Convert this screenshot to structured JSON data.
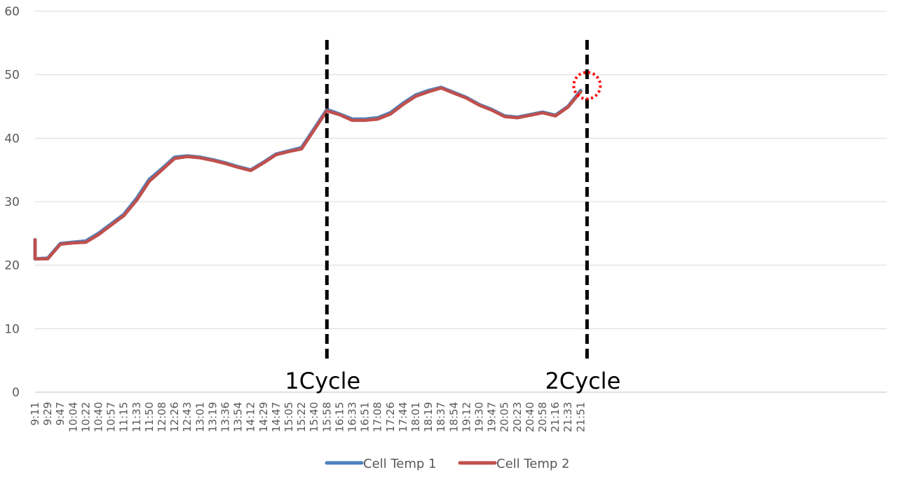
{
  "chart_data": {
    "type": "line",
    "title": "",
    "xlabel": "",
    "ylabel": "",
    "ylim": [
      0,
      60
    ],
    "y_ticks": [
      0,
      10,
      20,
      30,
      40,
      50,
      60
    ],
    "grid": true,
    "legend_position": "bottom",
    "categories": [
      "9:11",
      "9:29",
      "9:47",
      "10:04",
      "10:22",
      "10:40",
      "10:57",
      "11:15",
      "11:33",
      "11:50",
      "12:08",
      "12:26",
      "12:43",
      "13:01",
      "13:19",
      "13:36",
      "13:54",
      "14:12",
      "14:29",
      "14:47",
      "15:05",
      "15:22",
      "15:40",
      "15:58",
      "16:15",
      "16:33",
      "16:51",
      "17:08",
      "17:26",
      "17:44",
      "18:01",
      "18:19",
      "18:37",
      "18:54",
      "19:12",
      "19:30",
      "19:47",
      "20:05",
      "20:23",
      "20:40",
      "20:58",
      "21:16",
      "21:33",
      "21:51"
    ],
    "series": [
      {
        "name": "Cell Temp 1",
        "color": "#4F81BD",
        "values": [
          21.0,
          21.1,
          23.4,
          23.6,
          23.8,
          25.0,
          26.5,
          28.0,
          30.5,
          33.5,
          35.2,
          37.0,
          37.2,
          37.0,
          36.6,
          36.1,
          35.5,
          35.0,
          36.2,
          37.5,
          38.0,
          38.5,
          41.5,
          44.5,
          43.8,
          43.0,
          43.0,
          43.2,
          44.0,
          45.5,
          46.8,
          47.5,
          48.0,
          47.2,
          46.4,
          45.3,
          44.5,
          43.5,
          43.3,
          43.7,
          44.1,
          43.6,
          45.0,
          47.5
        ]
      },
      {
        "name": "Cell Temp 2",
        "color": "#C0504D",
        "values": [
          21.0,
          21.0,
          23.3,
          23.5,
          23.6,
          24.8,
          26.3,
          27.8,
          30.2,
          33.2,
          35.0,
          36.8,
          37.1,
          36.9,
          36.5,
          36.0,
          35.4,
          34.9,
          36.1,
          37.4,
          37.9,
          38.3,
          41.3,
          44.3,
          43.7,
          42.8,
          42.8,
          43.0,
          43.8,
          45.3,
          46.6,
          47.3,
          47.9,
          47.1,
          46.3,
          45.2,
          44.4,
          43.4,
          43.2,
          43.6,
          44.0,
          43.5,
          44.9,
          47.3
        ]
      }
    ],
    "annotations": [
      {
        "text": "1Cycle",
        "at_category": "15:58",
        "style": "dashed-vertical",
        "color": "#000000"
      },
      {
        "text": "2Cycle",
        "at_category_index": 43.5,
        "style": "dashed-vertical",
        "color": "#000000"
      }
    ],
    "marker": {
      "shape": "dotted-circle",
      "color": "#FF0000",
      "at_value": 48.5,
      "at_category_index": 43.5
    }
  }
}
